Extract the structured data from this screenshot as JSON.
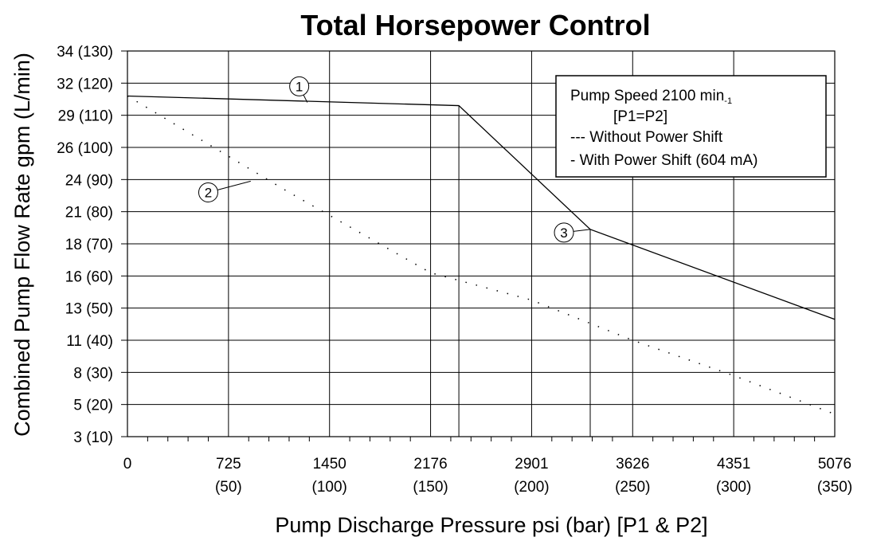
{
  "chart_data": {
    "type": "line",
    "title": "Total Horsepower Control",
    "xlabel": "Pump Discharge Pressure psi (bar) [P1 & P2]",
    "ylabel": "Combined Pump Flow Rate gpm (L/min)",
    "xlim": [
      0,
      350
    ],
    "ylim": [
      10,
      130
    ],
    "x_ticks": [
      {
        "value": 0,
        "label": "0",
        "sublabel": ""
      },
      {
        "value": 50,
        "label": "725",
        "sublabel": "(50)"
      },
      {
        "value": 100,
        "label": "1450",
        "sublabel": "(100)"
      },
      {
        "value": 150,
        "label": "2176",
        "sublabel": "(150)"
      },
      {
        "value": 200,
        "label": "2901",
        "sublabel": "(200)"
      },
      {
        "value": 250,
        "label": "3626",
        "sublabel": "(250)"
      },
      {
        "value": 300,
        "label": "4351",
        "sublabel": "(300)"
      },
      {
        "value": 350,
        "label": "5076",
        "sublabel": "(350)"
      }
    ],
    "y_ticks": [
      {
        "value": 10,
        "label": "3 (10)"
      },
      {
        "value": 20,
        "label": "5 (20)"
      },
      {
        "value": 30,
        "label": "8 (30)"
      },
      {
        "value": 40,
        "label": "11 (40)"
      },
      {
        "value": 50,
        "label": "13 (50)"
      },
      {
        "value": 60,
        "label": "16 (60)"
      },
      {
        "value": 70,
        "label": "18 (70)"
      },
      {
        "value": 80,
        "label": "21 (80)"
      },
      {
        "value": 90,
        "label": "24 (90)"
      },
      {
        "value": 100,
        "label": "26 (100)"
      },
      {
        "value": 110,
        "label": "29 (110)"
      },
      {
        "value": 120,
        "label": "32 (120)"
      },
      {
        "value": 130,
        "label": "34 (130)"
      }
    ],
    "series": [
      {
        "style": "dashed",
        "x": [
          0,
          80,
          150,
          200,
          250,
          300,
          350
        ],
        "y": [
          116,
          86,
          61,
          52.5,
          40,
          29,
          17
        ]
      },
      {
        "style": "solid",
        "x": [
          0,
          164,
          229,
          350
        ],
        "y": [
          116,
          113,
          74.5,
          46.5
        ]
      }
    ],
    "legend": {
      "position": "top-right",
      "line1_main": "Pump Speed 2100 min",
      "line1_sub": "-1",
      "line2": "[P1=P2]",
      "line3": "--- Without Power Shift",
      "line4": "-   With Power Shift (604 mA)"
    },
    "markers": [
      {
        "label": "1",
        "x": 85,
        "y": 119,
        "target_x": 89,
        "target_y": 114
      },
      {
        "label": "2",
        "x": 40,
        "y": 86,
        "target_x": 61,
        "target_y": 89.5
      },
      {
        "label": "3",
        "x": 216,
        "y": 73.5,
        "target_x": 229,
        "target_y": 74.5
      }
    ],
    "grid": true,
    "colors": {
      "line": "#000000",
      "grid": "#000000",
      "background": "#ffffff"
    }
  }
}
